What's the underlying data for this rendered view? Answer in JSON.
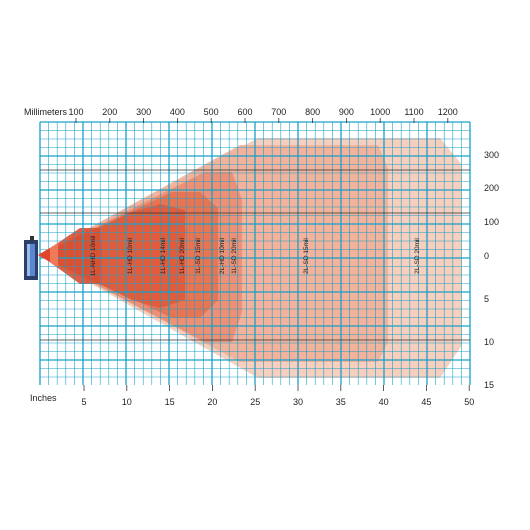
{
  "title_top": "Millimeters",
  "title_bottom": "Inches",
  "mm_ticks": [
    "100",
    "200",
    "300",
    "400",
    "500",
    "600",
    "700",
    "800",
    "900",
    "1000",
    "1100",
    "1200"
  ],
  "in_ticks": [
    "5",
    "10",
    "15",
    "20",
    "25",
    "30",
    "35",
    "40",
    "45",
    "50"
  ],
  "right_mm_ticks": [
    "300",
    "200",
    "100",
    "0"
  ],
  "right_in_ticks": [
    "5",
    "10",
    "15"
  ],
  "zone_labels": [
    "1L-NHD 10mil",
    "1L-HD 10mil",
    "1L-HD 14mil",
    "1L-HD 20mil",
    "1L-SD 15mil",
    "2L-HD 10mil",
    "1L-SD 20mil",
    "2L-SD 15mil",
    "2L-SD 20mil"
  ],
  "colors": {
    "grid": "#1aa0c8",
    "zone_far": "#f6c9b6",
    "zone_mid": "#efa38a",
    "zone_near": "#e8644a",
    "zone_core": "#e0402a",
    "scanner_body": "#4a72b8"
  }
}
